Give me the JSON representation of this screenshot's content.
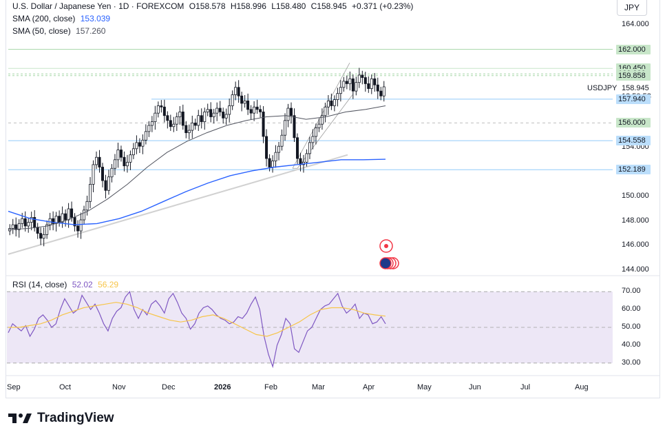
{
  "legend": {
    "title": "U.S. Dollar / Japanese Yen · 1D · FOREXCOM",
    "open": "O158.578",
    "high": "H158.996",
    "low": "L158.480",
    "close": "C158.945",
    "change": "+0.371 (+0.23%)",
    "sma200_label": "SMA (200, close)",
    "sma200_value": "153.039",
    "sma50_label": "SMA (50, close)",
    "sma50_value": "157.260",
    "rsi_label": "RSI (14, close)",
    "rsi_value": "52.02",
    "rsi_ma_value": "56.29"
  },
  "currency": "JPY",
  "symbol": "USDJPY",
  "current_price": "158.945",
  "countdown": "12:50:53",
  "brand": "TradingView",
  "colors": {
    "up": "#131722",
    "down": "#131722",
    "sma200": "#2962ff",
    "sma50": "#50535e",
    "rsi": "#7e57c2",
    "rsi_ma": "#f7c548",
    "green_label": "#c8e6c9",
    "blue_label": "#bbdefb"
  },
  "price_axis": [
    "164.000",
    "162.000",
    "160.000",
    "158.000",
    "156.000",
    "154.000",
    "152.000",
    "150.000",
    "148.000",
    "146.000",
    "144.000"
  ],
  "price_labels": [
    {
      "text": "162.000",
      "style": "green"
    },
    {
      "text": "160.450",
      "style": "green"
    },
    {
      "text": "160.000",
      "style": "green"
    },
    {
      "text": "159.858",
      "style": "green"
    },
    {
      "text": "157.940",
      "style": "blue"
    },
    {
      "text": "156.000",
      "style": "green"
    },
    {
      "text": "154.558",
      "style": "blue"
    },
    {
      "text": "152.189",
      "style": "blue"
    }
  ],
  "rsi_axis": [
    "70.00",
    "60.00",
    "50.00",
    "40.00",
    "30.00"
  ],
  "time_axis": [
    "Sep",
    "Oct",
    "Nov",
    "Dec",
    "2026",
    "Feb",
    "Mar",
    "Apr",
    "May",
    "Jun",
    "Jul",
    "Aug"
  ],
  "chart_data": {
    "type": "candlestick",
    "title": "U.S. Dollar / Japanese Yen · 1D · FOREXCOM",
    "ylim": [
      144,
      164
    ],
    "horizontal_levels": [
      162.0,
      160.45,
      160.0,
      159.858,
      157.94,
      156.0,
      154.558,
      152.189
    ],
    "close_series": [
      147.4,
      147.7,
      147.3,
      147.8,
      148.2,
      147.6,
      147.9,
      148.3,
      147.5,
      147.0,
      146.6,
      146.9,
      147.7,
      148.2,
      147.8,
      148.4,
      147.9,
      148.6,
      148.1,
      149.0,
      148.3,
      147.6,
      147.2,
      148.1,
      148.9,
      149.6,
      151.0,
      152.6,
      153.2,
      152.4,
      151.3,
      150.5,
      151.6,
      152.3,
      153.0,
      153.8,
      153.2,
      152.5,
      152.8,
      153.4,
      153.9,
      154.4,
      154.1,
      154.6,
      155.3,
      155.8,
      156.1,
      156.8,
      157.4,
      157.3,
      156.6,
      156.2,
      155.7,
      155.9,
      156.5,
      156.9,
      155.8,
      155.2,
      155.4,
      156.0,
      155.8,
      156.6,
      156.1,
      156.9,
      157.1,
      156.5,
      156.8,
      157.2,
      156.9,
      156.4,
      156.7,
      157.4,
      158.3,
      158.9,
      158.2,
      157.6,
      157.8,
      157.1,
      156.8,
      157.3,
      157.1,
      156.9,
      154.9,
      153.1,
      152.4,
      152.9,
      153.6,
      154.1,
      155.0,
      156.2,
      157.2,
      156.6,
      154.8,
      153.1,
      152.6,
      152.8,
      153.5,
      154.4,
      154.9,
      155.6,
      155.9,
      156.6,
      157.3,
      157.8,
      157.4,
      157.9,
      158.4,
      158.9,
      159.4,
      159.2,
      159.6,
      158.6,
      159.3,
      159.9,
      159.7,
      159.2,
      158.8,
      159.6,
      159.1,
      158.6,
      158.2,
      158.945
    ],
    "sma50_series": [
      147.3,
      147.4,
      147.6,
      148.1,
      148.8,
      149.8,
      151.0,
      152.4,
      153.6,
      154.5,
      155.2,
      155.8,
      156.2,
      156.5,
      156.6,
      156.3,
      156.5,
      156.9,
      157.1,
      157.4
    ],
    "sma200_series": [
      148.8,
      148.2,
      147.9,
      147.7,
      147.8,
      148.2,
      148.8,
      149.6,
      150.4,
      151.1,
      151.7,
      152.1,
      152.4,
      152.6,
      152.8,
      153.0,
      153.0,
      153.04
    ],
    "rsi": {
      "levels": [
        70,
        50,
        30
      ],
      "ylim": [
        28,
        72
      ],
      "rsi_series": [
        47,
        52,
        50,
        48,
        51,
        45,
        49,
        55,
        57,
        54,
        50,
        52,
        60,
        66,
        62,
        58,
        60,
        68,
        64,
        60,
        63,
        58,
        52,
        48,
        55,
        59,
        61,
        67,
        70,
        60,
        55,
        60,
        57,
        63,
        65,
        62,
        58,
        66,
        69,
        64,
        58,
        55,
        49,
        52,
        58,
        61,
        62,
        60,
        57,
        55,
        54,
        52,
        53,
        56,
        55,
        58,
        63,
        67,
        60,
        45,
        35,
        28,
        40,
        46,
        55,
        52,
        38,
        36,
        42,
        48,
        50,
        55,
        60,
        62,
        63,
        66,
        69,
        62,
        58,
        60,
        63,
        55,
        58,
        57,
        52,
        53,
        56,
        52.02
      ],
      "ma_series": [
        50,
        50,
        51,
        52,
        54,
        57,
        59,
        61,
        62,
        63,
        64,
        63,
        61,
        58,
        56,
        54,
        53,
        54,
        56,
        57,
        55,
        52,
        49,
        46,
        45,
        47,
        50,
        53,
        57,
        60,
        61,
        61,
        60,
        58,
        57,
        56.29
      ]
    },
    "legend": [
      "SMA (200, close)",
      "SMA (50, close)",
      "RSI (14, close)"
    ]
  }
}
